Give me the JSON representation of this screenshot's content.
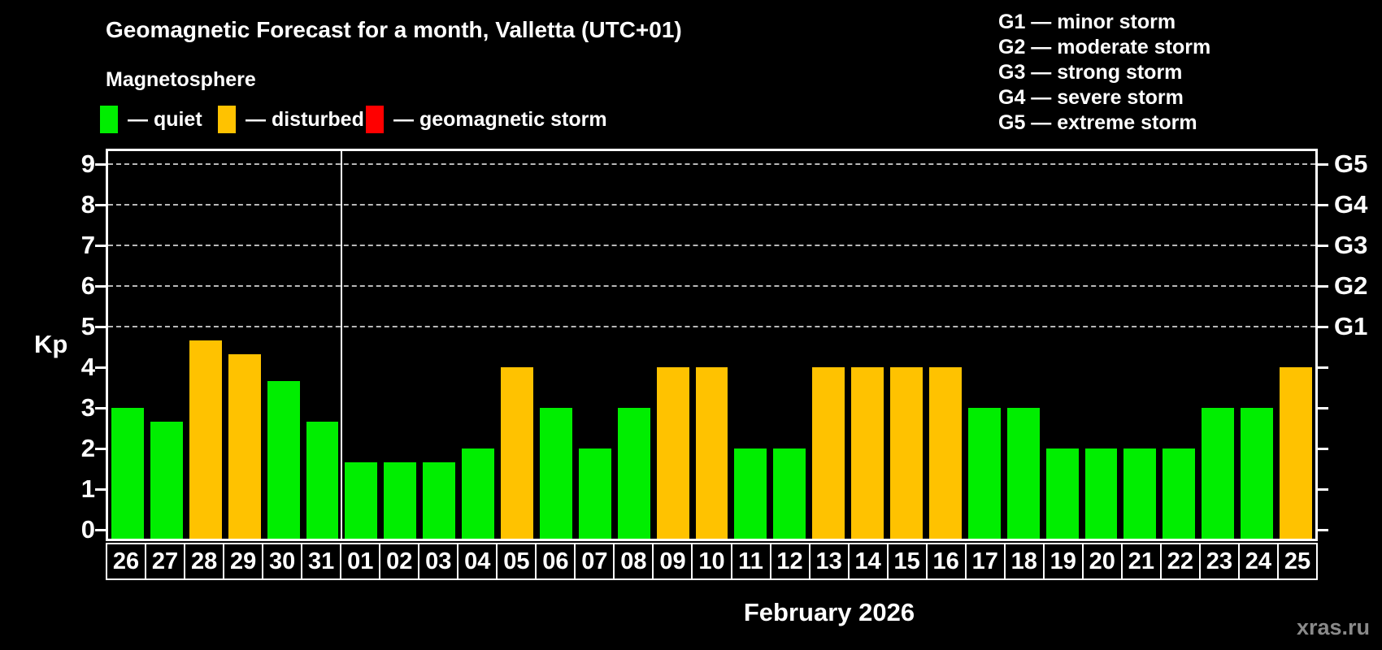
{
  "title": "Geomagnetic Forecast for a month, Valletta (UTC+01)",
  "subtitle": "Magnetosphere",
  "legend": {
    "items": [
      {
        "name": "quiet",
        "label": "— quiet",
        "color": "#00ee00"
      },
      {
        "name": "disturbed",
        "label": "— disturbed",
        "color": "#ffc200"
      },
      {
        "name": "geomagnetic-storm",
        "label": "— geomagnetic storm",
        "color": "#ff0000"
      }
    ]
  },
  "g_legend": {
    "lines": [
      "G1 — minor storm",
      "G2 — moderate storm",
      "G3 — strong storm",
      "G4 — severe storm",
      "G5 — extreme storm"
    ]
  },
  "watermark": "xras.ru",
  "chart_data": {
    "type": "bar",
    "title": "Geomagnetic Forecast for a month, Valletta (UTC+01)",
    "ylabel": "Kp",
    "xlabel": "February 2026",
    "ylim": [
      0,
      9
    ],
    "yticks": [
      0,
      1,
      2,
      3,
      4,
      5,
      6,
      7,
      8,
      9
    ],
    "grid_kp": [
      5,
      6,
      7,
      8,
      9
    ],
    "grid_on": true,
    "legend_position": "top",
    "right_axis": [
      {
        "kp": 5,
        "label": "G1"
      },
      {
        "kp": 6,
        "label": "G2"
      },
      {
        "kp": 7,
        "label": "G3"
      },
      {
        "kp": 8,
        "label": "G4"
      },
      {
        "kp": 9,
        "label": "G5"
      }
    ],
    "categories": [
      "26",
      "27",
      "28",
      "29",
      "30",
      "31",
      "01",
      "02",
      "03",
      "04",
      "05",
      "06",
      "07",
      "08",
      "09",
      "10",
      "11",
      "12",
      "13",
      "14",
      "15",
      "16",
      "17",
      "18",
      "19",
      "20",
      "21",
      "22",
      "23",
      "24",
      "25"
    ],
    "values": [
      3.0,
      2.67,
      4.67,
      4.33,
      3.67,
      2.67,
      1.67,
      1.67,
      1.67,
      2.0,
      4.0,
      3.0,
      2.0,
      3.0,
      4.0,
      4.0,
      2.0,
      2.0,
      4.0,
      4.0,
      4.0,
      4.0,
      3.0,
      3.0,
      2.0,
      2.0,
      2.0,
      2.0,
      3.0,
      3.0,
      4.0
    ],
    "statuses": [
      "quiet",
      "quiet",
      "disturbed",
      "disturbed",
      "quiet",
      "quiet",
      "quiet",
      "quiet",
      "quiet",
      "quiet",
      "disturbed",
      "quiet",
      "quiet",
      "quiet",
      "disturbed",
      "disturbed",
      "quiet",
      "quiet",
      "disturbed",
      "disturbed",
      "disturbed",
      "disturbed",
      "quiet",
      "quiet",
      "quiet",
      "quiet",
      "quiet",
      "quiet",
      "quiet",
      "quiet",
      "disturbed"
    ],
    "status_colors": {
      "quiet": "#00ee00",
      "disturbed": "#ffc200",
      "storm": "#ff0000"
    },
    "month_boundary_index": 6
  }
}
